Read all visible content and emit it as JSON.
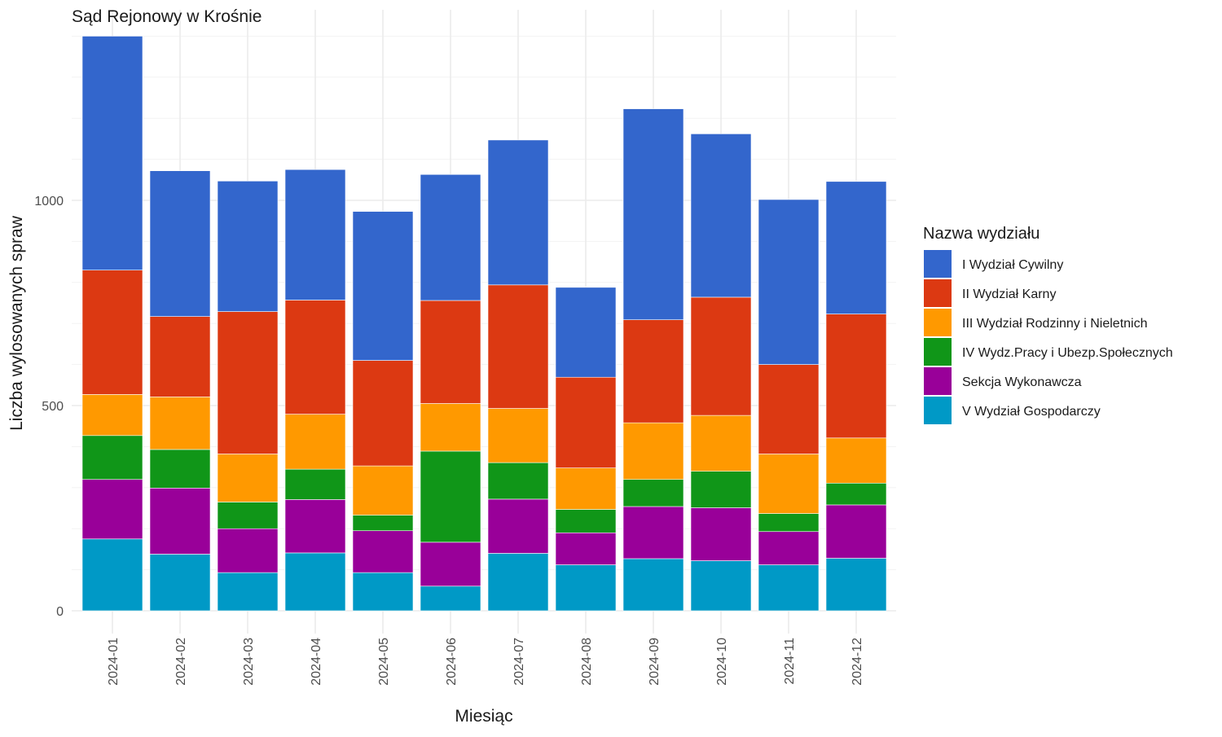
{
  "chart_data": {
    "type": "bar",
    "stacked": true,
    "title": "Sąd Rejonowy w Krośnie",
    "xlabel": "Miesiąc",
    "ylabel": "Liczba wylosowanych spraw",
    "ylim": [
      0,
      1400
    ],
    "yticks": [
      0,
      500,
      1000
    ],
    "grid": true,
    "legend_title": "Nazwa wydziału",
    "legend_position": "right",
    "categories": [
      "2024-01",
      "2024-02",
      "2024-03",
      "2024-04",
      "2024-05",
      "2024-06",
      "2024-07",
      "2024-08",
      "2024-09",
      "2024-10",
      "2024-11",
      "2024-12"
    ],
    "series": [
      {
        "name": "V Wydział Gospodarczy",
        "color": "#0099C6",
        "values": [
          175,
          138,
          93,
          141,
          93,
          60,
          140,
          112,
          127,
          122,
          112,
          128
        ]
      },
      {
        "name": "Sekcja Wykonawcza",
        "color": "#990099",
        "values": [
          145,
          161,
          107,
          130,
          102,
          107,
          132,
          78,
          127,
          129,
          81,
          130
        ]
      },
      {
        "name": "IV Wydz.Pracy i Ubezp.Społecznych",
        "color": "#109618",
        "values": [
          107,
          94,
          65,
          74,
          38,
          222,
          89,
          57,
          66,
          89,
          44,
          53
        ]
      },
      {
        "name": "III Wydział Rodzinny i Nieletnich",
        "color": "#FF9900",
        "values": [
          100,
          128,
          117,
          134,
          120,
          116,
          132,
          101,
          138,
          136,
          145,
          110
        ]
      },
      {
        "name": "II Wydział Karny",
        "color": "#DC3912",
        "values": [
          303,
          196,
          347,
          278,
          257,
          251,
          301,
          221,
          251,
          288,
          218,
          302
        ]
      },
      {
        "name": "I Wydział Cywilny",
        "color": "#3366CC",
        "values": [
          570,
          355,
          318,
          318,
          363,
          307,
          353,
          219,
          514,
          398,
          402,
          323
        ]
      }
    ],
    "legend_order": [
      "I Wydział Cywilny",
      "II Wydział Karny",
      "III Wydział Rodzinny i Nieletnich",
      "IV Wydz.Pracy i Ubezp.Społecznych",
      "Sekcja Wykonawcza",
      "V Wydział Gospodarczy"
    ]
  }
}
